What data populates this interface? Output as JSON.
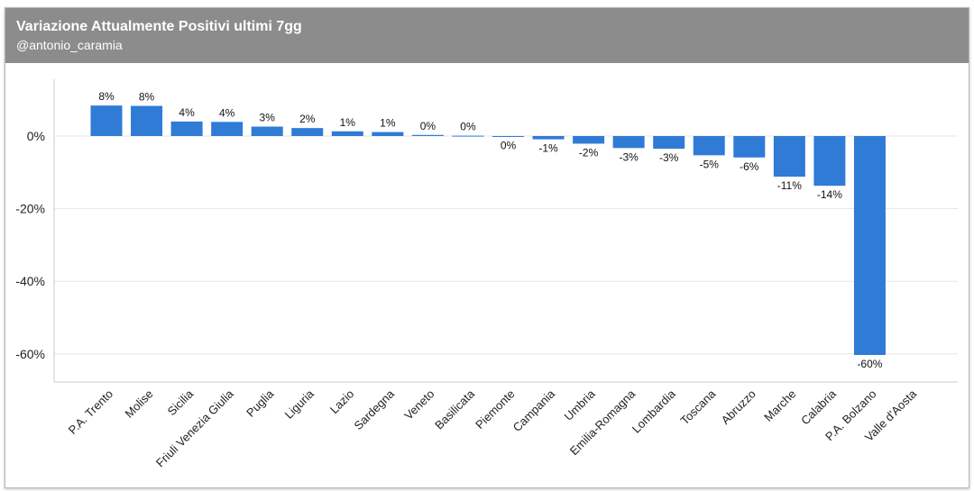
{
  "header": {
    "title": "Variazione Attualmente Positivi ultimi 7gg",
    "subtitle": "@antonio_caramia"
  },
  "colors": {
    "header_bg": "#8c8c8c",
    "bar": "#2f7bd6",
    "grid": "#e6e6e6"
  },
  "chart_data": {
    "type": "bar",
    "title": "Variazione Attualmente Positivi ultimi 7gg",
    "xlabel": "",
    "ylabel": "",
    "ylim": [
      -60,
      10
    ],
    "yticks": [
      0,
      -20,
      -40,
      -60
    ],
    "ytick_labels": [
      "0%",
      "-20%",
      "-40%",
      "-60%"
    ],
    "grid": true,
    "categories": [
      "P.A. Trento",
      "Molise",
      "Sicilia",
      "Friuli Venezia Giulia",
      "Puglia",
      "Liguria",
      "Lazio",
      "Sardegna",
      "Veneto",
      "Basilicata",
      "Piemonte",
      "Campania",
      "Umbria",
      "Emilia-Romagna",
      "Lombardia",
      "Toscana",
      "Abruzzo",
      "Marche",
      "Calabria",
      "P.A. Bolzano",
      "Valle d'Aosta"
    ],
    "values": [
      8.4,
      8.3,
      4.0,
      3.9,
      2.6,
      2.2,
      1.3,
      1.1,
      0.3,
      0.1,
      -0.1,
      -0.9,
      -2.1,
      -3.3,
      -3.5,
      -5.3,
      -5.9,
      -11.2,
      -13.7,
      -60.3,
      0
    ],
    "data_labels": [
      "8%",
      "8%",
      "4%",
      "4%",
      "3%",
      "2%",
      "1%",
      "1%",
      "0%",
      "0%",
      "0%",
      "-1%",
      "-2%",
      "-3%",
      "-3%",
      "-5%",
      "-6%",
      "-11%",
      "-14%",
      "-60%",
      ""
    ]
  }
}
